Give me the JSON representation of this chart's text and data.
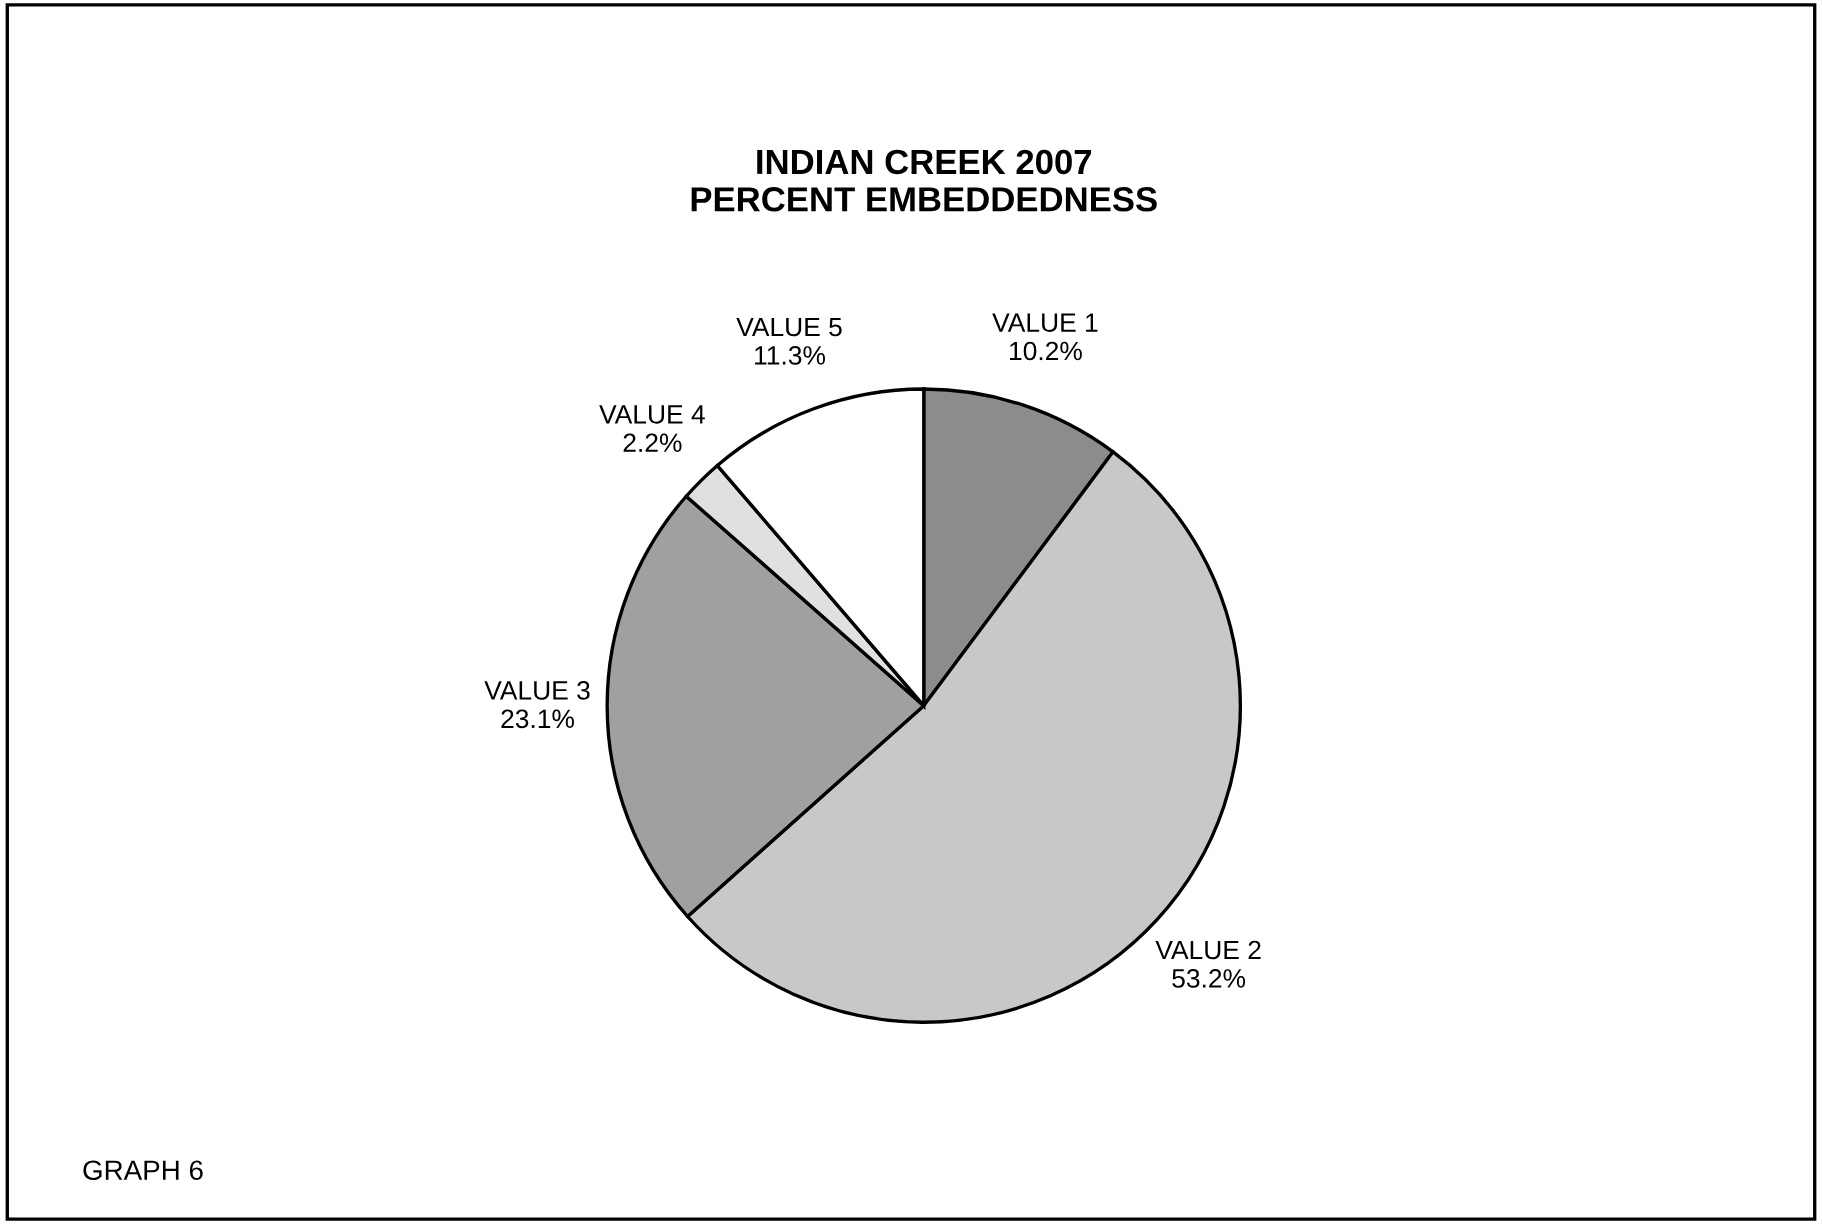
{
  "chart_data": {
    "type": "pie",
    "title": "INDIAN CREEK 2007\nPERCENT EMBEDDEDNESS",
    "categories": [
      "VALUE 1",
      "VALUE 2",
      "VALUE 3",
      "VALUE 4",
      "VALUE 5"
    ],
    "values": [
      10.2,
      53.2,
      23.1,
      2.2,
      11.3
    ],
    "value_labels": [
      "10.2%",
      "53.2%",
      "23.1%",
      "2.2%",
      "11.3%"
    ],
    "colors": [
      "#8c8c8c",
      "#c8c8c8",
      "#a0a0a0",
      "#e0e0e0",
      "#ffffff"
    ],
    "annotations": [
      "GRAPH 6"
    ]
  }
}
